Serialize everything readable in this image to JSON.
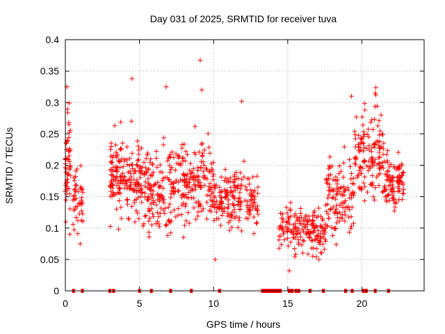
{
  "chart_data": {
    "type": "scatter",
    "title": "Day 031 of 2025, SRMTID for receiver tuva",
    "xlabel": "GPS time / hours",
    "ylabel": "SRMTID / TECUs",
    "xlim": [
      0,
      24.2
    ],
    "ylim": [
      0,
      0.4
    ],
    "xticks": [
      0,
      5,
      10,
      15,
      20
    ],
    "xtick_labels": [
      "0",
      "5",
      "10",
      "15",
      "20"
    ],
    "yticks": [
      0,
      0.05,
      0.1,
      0.15,
      0.2,
      0.25,
      0.3,
      0.35,
      0.4
    ],
    "ytick_labels": [
      "0",
      "0.05",
      "0.1",
      "0.15",
      "0.2",
      "0.25",
      "0.3",
      "0.35",
      "0.4"
    ],
    "grid": true,
    "marker": "plus",
    "color": "#ff0000",
    "clusters": [
      {
        "x_start": 0.0,
        "x_end": 0.35,
        "y_center": 0.2,
        "y_spread": 0.06,
        "count": 55
      },
      {
        "x_start": 0.5,
        "x_end": 1.2,
        "y_center": 0.15,
        "y_spread": 0.035,
        "count": 45
      },
      {
        "x_start": 3.0,
        "x_end": 5.0,
        "y_center": 0.18,
        "y_spread": 0.045,
        "count": 170
      },
      {
        "x_start": 5.0,
        "x_end": 7.5,
        "y_center": 0.165,
        "y_spread": 0.045,
        "count": 170
      },
      {
        "x_start": 7.5,
        "x_end": 10.0,
        "y_center": 0.17,
        "y_spread": 0.045,
        "count": 170
      },
      {
        "x_start": 10.0,
        "x_end": 13.0,
        "y_center": 0.145,
        "y_spread": 0.03,
        "count": 190
      },
      {
        "x_start": 14.4,
        "x_end": 16.0,
        "y_center": 0.1,
        "y_spread": 0.025,
        "count": 85
      },
      {
        "x_start": 16.0,
        "x_end": 17.6,
        "y_center": 0.095,
        "y_spread": 0.025,
        "count": 100
      },
      {
        "x_start": 17.6,
        "x_end": 19.5,
        "y_center": 0.15,
        "y_spread": 0.04,
        "count": 120
      },
      {
        "x_start": 19.5,
        "x_end": 21.5,
        "y_center": 0.22,
        "y_spread": 0.05,
        "count": 140
      },
      {
        "x_start": 21.5,
        "x_end": 22.9,
        "y_center": 0.175,
        "y_spread": 0.03,
        "count": 100
      }
    ],
    "outliers": [
      {
        "x": 9.1,
        "y": 0.367
      },
      {
        "x": 4.5,
        "y": 0.338
      },
      {
        "x": 6.8,
        "y": 0.325
      },
      {
        "x": 0.1,
        "y": 0.325
      },
      {
        "x": 9.2,
        "y": 0.32
      },
      {
        "x": 20.9,
        "y": 0.315
      },
      {
        "x": 19.3,
        "y": 0.31
      },
      {
        "x": 11.9,
        "y": 0.302
      },
      {
        "x": 10.1,
        "y": 0.05
      },
      {
        "x": 15.1,
        "y": 0.032
      },
      {
        "x": 17.1,
        "y": 0.05
      },
      {
        "x": 0.3,
        "y": 0.09
      },
      {
        "x": 1.0,
        "y": 0.075
      }
    ],
    "baseline_markers_x": [
      0.55,
      1.15,
      3.0,
      3.25,
      5.0,
      5.8,
      7.1,
      8.5,
      10.4,
      13.3,
      13.45,
      13.6,
      13.75,
      13.9,
      14.05,
      14.2,
      14.35,
      14.5,
      15.1,
      15.3,
      15.55,
      15.75,
      16.5,
      17.4,
      18.9,
      19.35,
      20.1,
      20.3,
      20.9,
      21.8
    ]
  }
}
